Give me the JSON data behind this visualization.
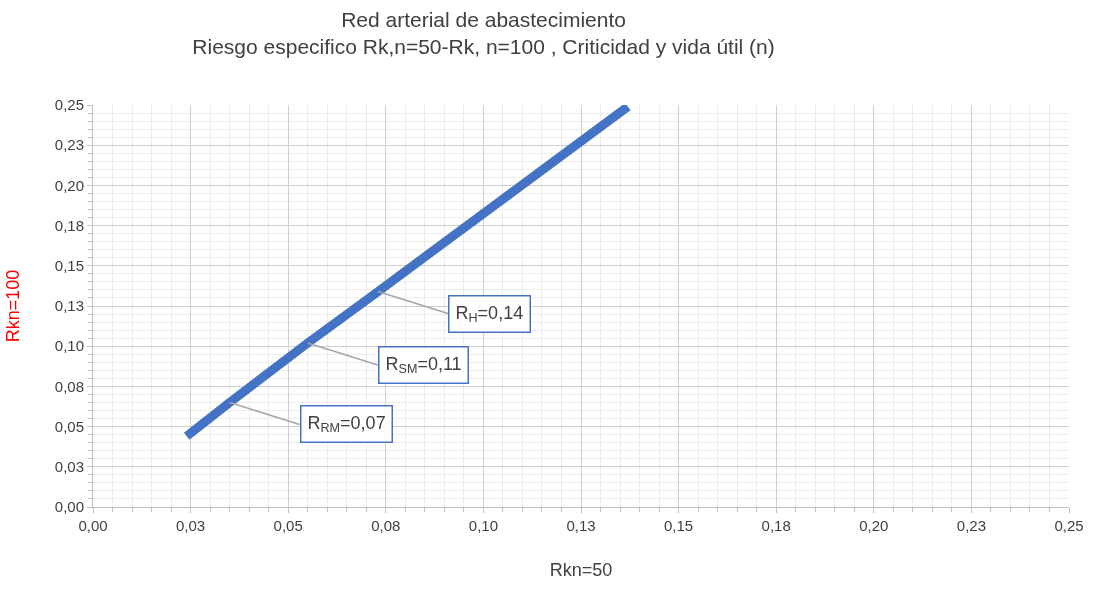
{
  "chart_data": {
    "type": "line",
    "title": "Red arterial de abastecimiento",
    "subtitle": "Riesgo especifico Rk,n=50-Rk, n=100 , Criticidad y vida útil (n)",
    "xlabel": "Rkn=50",
    "ylabel": "Rkn=100",
    "series": [
      {
        "color": "#4472c4",
        "x": [
          0.024,
          0.035,
          0.055,
          0.073,
          0.137
        ],
        "values": [
          0.044,
          0.065,
          0.102,
          0.134,
          0.249
        ]
      }
    ],
    "xlim": [
      0,
      0.25
    ],
    "ylim": [
      0,
      0.25
    ],
    "xticks": [
      {
        "value": 0,
        "label": "0,00"
      },
      {
        "value": 0.025,
        "label": "0,03"
      },
      {
        "value": 0.05,
        "label": "0,05"
      },
      {
        "value": 0.075,
        "label": "0,08"
      },
      {
        "value": 0.1,
        "label": "0,10"
      },
      {
        "value": 0.125,
        "label": "0,13"
      },
      {
        "value": 0.15,
        "label": "0,15"
      },
      {
        "value": 0.175,
        "label": "0,18"
      },
      {
        "value": 0.2,
        "label": "0,20"
      },
      {
        "value": 0.225,
        "label": "0,23"
      },
      {
        "value": 0.25,
        "label": "0,25"
      }
    ],
    "yticks": [
      {
        "value": 0,
        "label": "0,00"
      },
      {
        "value": 0.025,
        "label": "0,03"
      },
      {
        "value": 0.05,
        "label": "0,05"
      },
      {
        "value": 0.075,
        "label": "0,08"
      },
      {
        "value": 0.1,
        "label": "0,10"
      },
      {
        "value": 0.125,
        "label": "0,13"
      },
      {
        "value": 0.15,
        "label": "0,15"
      },
      {
        "value": 0.175,
        "label": "0,18"
      },
      {
        "value": 0.2,
        "label": "0,20"
      },
      {
        "value": 0.225,
        "label": "0,23"
      },
      {
        "value": 0.25,
        "label": "0,25"
      }
    ],
    "annotations": [
      {
        "text": "R$_{H}$=0,14",
        "x": 0.073,
        "y": 0.134
      },
      {
        "text": "R$_{SM}$=0,11",
        "x": 0.055,
        "y": 0.102
      },
      {
        "text": "R$_{RM}$=0,07",
        "x": 0.035,
        "y": 0.065
      }
    ],
    "grid": true,
    "marker": "none",
    "line_style": "solid"
  }
}
